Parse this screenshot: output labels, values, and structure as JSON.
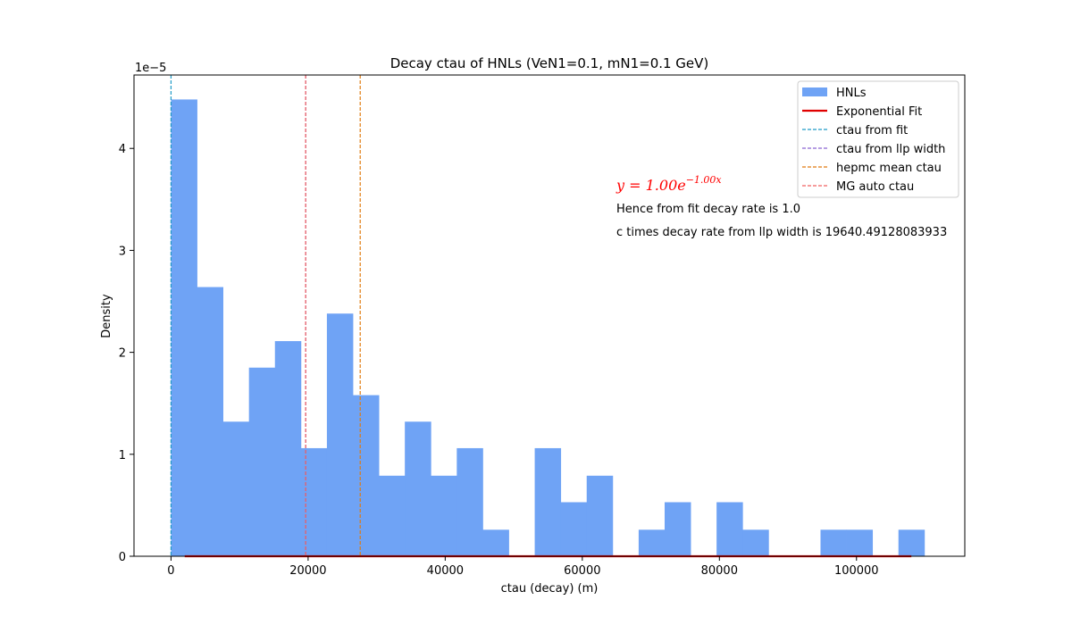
{
  "chart_data": {
    "type": "bar",
    "title": "Decay ctau of HNLs (VeN1=0.1, mN1=0.1 GeV)",
    "xlabel": "ctau (decay) (m)",
    "ylabel": "Density",
    "y_offset_label": "1e−5",
    "xlim": [
      -5400,
      115800
    ],
    "ylim": [
      0,
      4.72
    ],
    "y_scale_exponent": -5,
    "x_ticks": [
      0,
      20000,
      40000,
      60000,
      80000,
      100000
    ],
    "y_ticks": [
      0,
      1,
      2,
      3,
      4
    ],
    "bin_edges": [
      0,
      3790,
      7580,
      11370,
      15160,
      18950,
      22740,
      26530,
      30320,
      34110,
      37900,
      41690,
      45480,
      49270,
      53060,
      56850,
      60640,
      64430,
      68220,
      72010,
      75800,
      79590,
      83380,
      87170,
      90960,
      94750,
      98540,
      102330,
      106120,
      109910
    ],
    "series": [
      {
        "name": "HNLs",
        "type": "hist",
        "color": "#6fa3f5",
        "values": [
          4.48,
          2.64,
          1.32,
          1.85,
          2.11,
          1.06,
          2.38,
          1.58,
          0.79,
          1.32,
          0.79,
          1.06,
          0.26,
          0.0,
          1.06,
          0.53,
          0.79,
          0.0,
          0.26,
          0.53,
          0.0,
          0.53,
          0.26,
          0.0,
          0.0,
          0.26,
          0.26,
          0.0,
          0.26
        ]
      },
      {
        "name": "Exponential Fit",
        "type": "line",
        "color": "#e00000",
        "x": [
          2000,
          108000
        ],
        "y": [
          0,
          0
        ]
      }
    ],
    "vlines": [
      {
        "name": "ctau from fit",
        "x": 0,
        "color": "#1f9bc7"
      },
      {
        "name": "ctau from llp width",
        "x": 19640,
        "color": "#8a63d2"
      },
      {
        "name": "hepmc mean ctau",
        "x": 27600,
        "color": "#e07b10"
      },
      {
        "name": "MG auto ctau",
        "x": 19640,
        "color": "#f06060"
      }
    ],
    "legend_position": "upper right",
    "annotations": {
      "formula_prefix": "y = 1.00e",
      "formula_exponent": "−1.00x",
      "formula_color": "#ff0000",
      "line1": "Hence from fit  decay rate is 1.0",
      "line2": "c times decay rate from llp width is 19640.49128083933"
    }
  }
}
